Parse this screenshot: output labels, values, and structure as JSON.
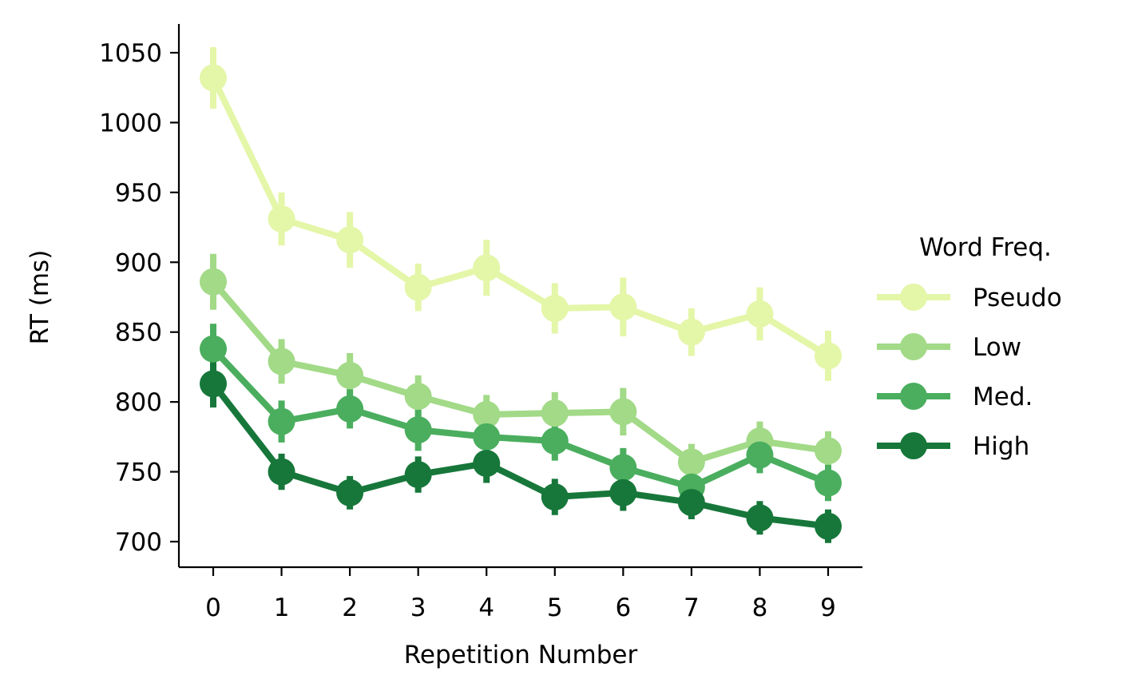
{
  "chart_data": {
    "type": "line",
    "xlabel": "Repetition Number",
    "ylabel": "RT (ms)",
    "x": [
      0,
      1,
      2,
      3,
      4,
      5,
      6,
      7,
      8,
      9
    ],
    "xticks": [
      0,
      1,
      2,
      3,
      4,
      5,
      6,
      7,
      8,
      9
    ],
    "yticks": [
      700,
      750,
      800,
      850,
      900,
      950,
      1000,
      1050
    ],
    "xlim": [
      -0.5,
      9.5
    ],
    "ylim": [
      682,
      1069
    ],
    "grid": false,
    "error_bars": true,
    "legend": {
      "title": "Word Freq.",
      "placement": "right"
    },
    "series": [
      {
        "name": "Pseudo",
        "color": "#e4f6a8",
        "values": [
          1032,
          931,
          916,
          882,
          896,
          867,
          868,
          850,
          863,
          833
        ],
        "err": [
          22,
          19,
          20,
          17,
          20,
          18,
          21,
          17,
          19,
          18
        ]
      },
      {
        "name": "Low",
        "color": "#a2da87",
        "values": [
          886,
          829,
          819,
          804,
          791,
          792,
          793,
          757,
          772,
          765
        ],
        "err": [
          20,
          16,
          16,
          15,
          14,
          15,
          17,
          13,
          14,
          14
        ]
      },
      {
        "name": "Med.",
        "color": "#4aae5e",
        "values": [
          838,
          786,
          795,
          780,
          775,
          772,
          753,
          739,
          762,
          742
        ],
        "err": [
          18,
          15,
          14,
          15,
          13,
          14,
          14,
          12,
          13,
          13
        ]
      },
      {
        "name": "High",
        "color": "#17773a",
        "values": [
          813,
          750,
          735,
          748,
          756,
          732,
          735,
          728,
          717,
          711
        ],
        "err": [
          17,
          13,
          12,
          13,
          14,
          13,
          13,
          12,
          12,
          12
        ]
      }
    ]
  }
}
